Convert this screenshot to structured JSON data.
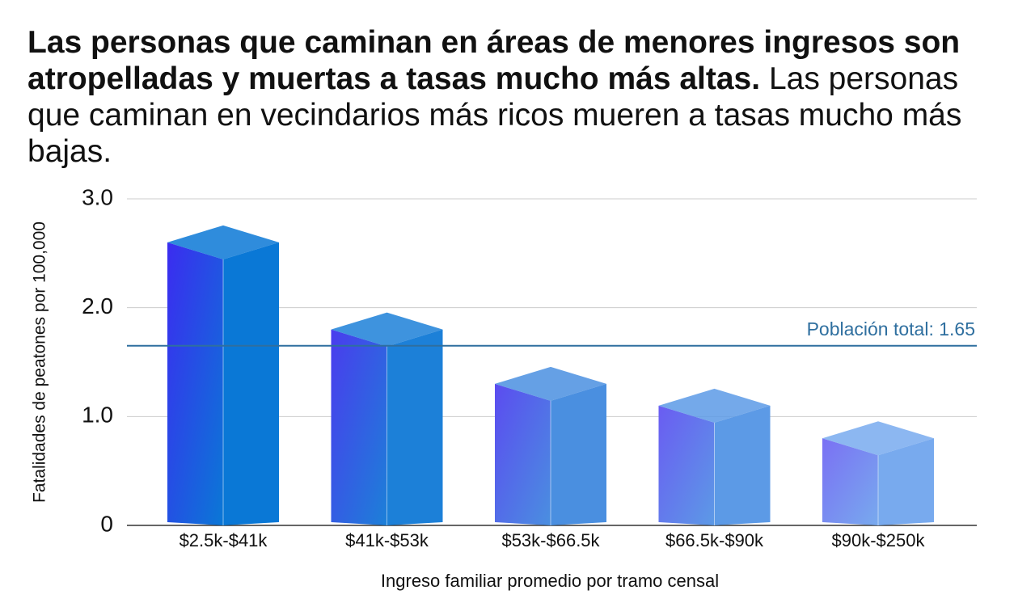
{
  "chart_data": {
    "type": "bar3d",
    "title": "Las personas que caminan en áreas de menores ingresos son atropelladas y muertas a tasas mucho más altas.",
    "subtitle": "Las personas que caminan en vecindarios más ricos mueren a tasas mucho más bajas.",
    "x_label": "Ingreso familiar promedio por tramo censal",
    "y_label": "Fatalidades de peatones por 100,000",
    "categories": [
      "$2.5k-$41k",
      "$41k-$53k",
      "$53k-$66.5k",
      "$66.5k-$90k",
      "$90k-$250k"
    ],
    "values": [
      2.6,
      1.8,
      1.3,
      1.1,
      0.8
    ],
    "colors": [
      "#3b2cf0",
      "#4a3cee",
      "#5b4cf0",
      "#6a5cf2",
      "#7a70f4"
    ],
    "side_colors": [
      "#0a78d6",
      "#1c80d8",
      "#4a8fe0",
      "#5c9ae6",
      "#78aaee"
    ],
    "ylim": [
      0,
      3
    ],
    "yticks": [
      0,
      {
        "value": 1,
        "label": "1.0"
      },
      {
        "value": 2,
        "label": "2.0"
      },
      {
        "value": 3,
        "label": "3.0"
      }
    ],
    "grid": true,
    "reference_line": {
      "value": 1.65,
      "label": "Población total: 1.65",
      "color": "#2f6f9f"
    }
  }
}
